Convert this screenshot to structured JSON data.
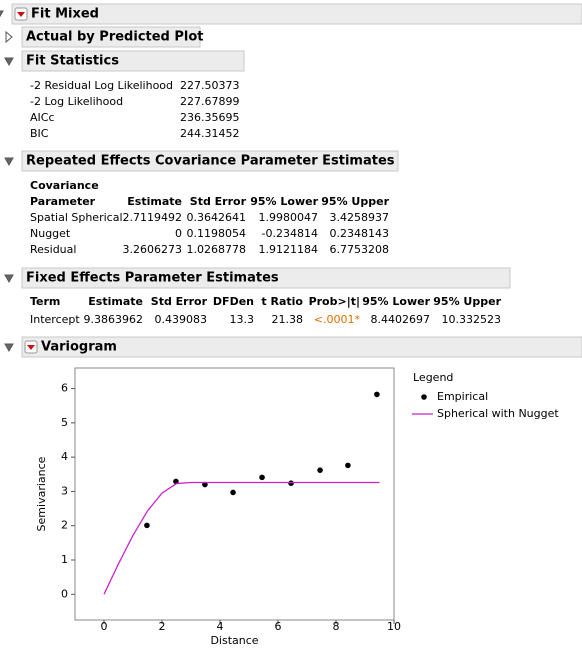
{
  "title": "Fit Mixed",
  "actual_by_predicted": {
    "title": "Actual by Predicted Plot"
  },
  "fit_statistics": {
    "title": "Fit Statistics",
    "rows": [
      [
        "-2 Residual Log Likelihood",
        "227.50373"
      ],
      [
        "-2 Log Likelihood",
        "227.67899"
      ],
      [
        "AICc",
        "236.35695"
      ],
      [
        "BIC",
        "244.31452"
      ]
    ]
  },
  "covariance": {
    "title": "Repeated Effects Covariance Parameter Estimates",
    "header_line1": "Covariance",
    "columns": [
      "Parameter",
      "Estimate",
      "Std Error",
      "95% Lower",
      "95% Upper"
    ],
    "rows": [
      [
        "Spatial Spherical",
        "2.7119492",
        "0.3642641",
        "1.9980047",
        "3.4258937"
      ],
      [
        "Nugget",
        "0",
        "0.1198054",
        "-0.234814",
        "0.2348143"
      ],
      [
        "Residual",
        "3.2606273",
        "1.0268778",
        "1.9121184",
        "6.7753208"
      ]
    ]
  },
  "fixed_effects": {
    "title": "Fixed Effects Parameter Estimates",
    "columns": [
      "Term",
      "Estimate",
      "Std Error",
      "DFDen",
      "t Ratio",
      "Prob>|t|",
      "95% Lower",
      "95% Upper"
    ],
    "rows": [
      [
        "Intercept",
        "9.3863962",
        "0.439083",
        "13.3",
        "21.38",
        "<.0001*",
        "8.4402697",
        "10.332523"
      ]
    ]
  },
  "variogram": {
    "title": "Variogram"
  },
  "chart_data": {
    "type": "scatter",
    "x_label": "Distance",
    "y_label": "Semivariance",
    "legend_title": "Legend",
    "xlim": [
      -1,
      10
    ],
    "ylim": [
      -0.75,
      6.6
    ],
    "xticks": [
      0,
      2,
      4,
      6,
      8,
      10
    ],
    "yticks": [
      0,
      1,
      2,
      3,
      4,
      5,
      6
    ],
    "series": [
      {
        "name": "Empirical",
        "mark": "point",
        "color": "#000000",
        "x": [
          1.48,
          2.48,
          3.48,
          4.45,
          5.45,
          6.45,
          7.45,
          8.41,
          9.41
        ],
        "values": [
          2.01,
          3.29,
          3.2,
          2.97,
          3.41,
          3.24,
          3.62,
          3.76,
          5.83
        ]
      },
      {
        "name": "Spherical with Nugget",
        "mark": "line",
        "color": "#cc22cc",
        "x": [
          0,
          0.5,
          1,
          1.5,
          2,
          2.5,
          3,
          9.5
        ],
        "values": [
          0,
          0.89,
          1.72,
          2.43,
          2.95,
          3.23,
          3.26,
          3.26
        ]
      }
    ]
  }
}
